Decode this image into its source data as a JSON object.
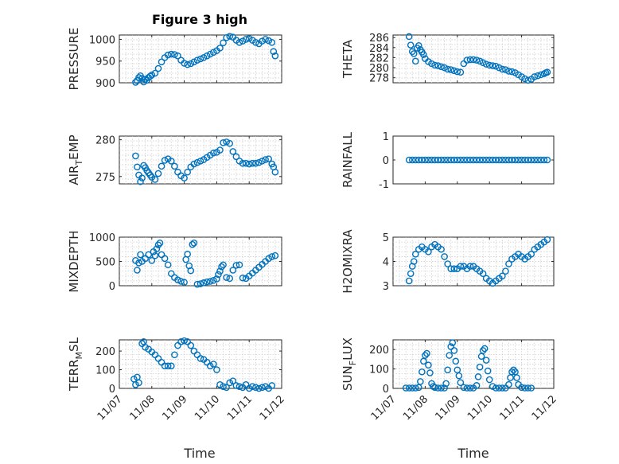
{
  "figure": {
    "title": "Figure 3 high"
  },
  "colors": {
    "marker": "#0072BD",
    "axis": "#262626",
    "grid": "#c8c8c8"
  },
  "chart_data": [
    {
      "type": "scatter",
      "ylabel": "PRESSURE",
      "ylim": [
        900,
        1010
      ],
      "yticks": [
        900,
        950,
        1000
      ],
      "ytick_labels": [
        "900",
        "950",
        "1000"
      ],
      "grid": true,
      "title": "Figure 3 high",
      "x": [
        0.5,
        0.55,
        0.6,
        0.65,
        0.7,
        0.75,
        0.8,
        0.85,
        0.9,
        0.95,
        1.0,
        1.1,
        1.2,
        1.3,
        1.4,
        1.5,
        1.6,
        1.7,
        1.8,
        1.9,
        2.0,
        2.1,
        2.2,
        2.3,
        2.4,
        2.5,
        2.6,
        2.7,
        2.8,
        2.9,
        3.0,
        3.1,
        3.2,
        3.3,
        3.4,
        3.5,
        3.6,
        3.7,
        3.8,
        3.9,
        4.0,
        4.1,
        4.2,
        4.3,
        4.4,
        4.5,
        4.6,
        4.7,
        4.75,
        4.8
      ],
      "values": [
        901,
        905,
        912,
        916,
        910,
        902,
        908,
        906,
        912,
        915,
        918,
        922,
        933,
        948,
        958,
        964,
        966,
        965,
        962,
        952,
        945,
        942,
        944,
        948,
        952,
        955,
        958,
        962,
        966,
        970,
        974,
        980,
        992,
        1004,
        1007,
        1005,
        998,
        993,
        996,
        1000,
        1002,
        998,
        993,
        990,
        996,
        1000,
        997,
        993,
        972,
        962
      ]
    },
    {
      "type": "scatter",
      "ylabel": "THETA",
      "ylim": [
        277,
        286.5
      ],
      "yticks": [
        278,
        280,
        282,
        284,
        286
      ],
      "ytick_labels": [
        "278",
        "280",
        "282",
        "284",
        "286"
      ],
      "grid": true,
      "x": [
        0.5,
        0.55,
        0.6,
        0.65,
        0.7,
        0.75,
        0.8,
        0.85,
        0.9,
        0.95,
        1.0,
        1.1,
        1.2,
        1.3,
        1.4,
        1.5,
        1.6,
        1.7,
        1.8,
        1.9,
        2.0,
        2.1,
        2.2,
        2.3,
        2.4,
        2.5,
        2.6,
        2.7,
        2.8,
        2.9,
        3.0,
        3.1,
        3.2,
        3.3,
        3.4,
        3.5,
        3.6,
        3.7,
        3.8,
        3.9,
        4.0,
        4.1,
        4.2,
        4.3,
        4.4,
        4.5,
        4.6,
        4.7,
        4.75,
        4.8
      ],
      "values": [
        286.2,
        284.5,
        283.2,
        282.8,
        281.3,
        283.9,
        284.4,
        283.6,
        283.1,
        282.6,
        281.8,
        281.2,
        280.8,
        280.5,
        280.4,
        280.2,
        280.0,
        279.7,
        279.6,
        279.4,
        279.2,
        279.1,
        280.8,
        281.5,
        281.6,
        281.6,
        281.5,
        281.3,
        281.0,
        280.7,
        280.5,
        280.4,
        280.3,
        280.0,
        279.7,
        279.6,
        279.3,
        279.2,
        279.0,
        278.6,
        278.2,
        277.8,
        277.5,
        277.7,
        278.2,
        278.4,
        278.6,
        278.8,
        279.0,
        279.1
      ]
    },
    {
      "type": "scatter",
      "ylabel": "AIR_TEMP",
      "ylim": [
        274,
        280.5
      ],
      "yticks": [
        275,
        280
      ],
      "ytick_labels": [
        "275",
        "280"
      ],
      "grid": true,
      "x": [
        0.5,
        0.55,
        0.6,
        0.65,
        0.7,
        0.75,
        0.8,
        0.85,
        0.9,
        0.95,
        1.0,
        1.1,
        1.2,
        1.3,
        1.4,
        1.5,
        1.6,
        1.7,
        1.8,
        1.9,
        2.0,
        2.1,
        2.2,
        2.3,
        2.4,
        2.5,
        2.6,
        2.7,
        2.8,
        2.9,
        3.0,
        3.1,
        3.2,
        3.3,
        3.4,
        3.5,
        3.6,
        3.7,
        3.8,
        3.9,
        4.0,
        4.1,
        4.2,
        4.3,
        4.4,
        4.5,
        4.6,
        4.7,
        4.75,
        4.8
      ],
      "values": [
        277.8,
        276.3,
        275.2,
        274.3,
        274.8,
        276.5,
        276.2,
        275.8,
        275.5,
        275.2,
        274.9,
        274.6,
        275.4,
        276.4,
        277.2,
        277.4,
        277.1,
        276.4,
        275.6,
        275.1,
        274.8,
        275.6,
        276.3,
        276.7,
        276.9,
        277.1,
        277.3,
        277.6,
        277.9,
        278.2,
        278.3,
        278.6,
        279.6,
        279.7,
        279.5,
        278.4,
        277.7,
        277.1,
        276.8,
        276.8,
        276.7,
        276.8,
        276.8,
        276.9,
        277.1,
        277.3,
        277.4,
        276.7,
        276.3,
        275.6
      ]
    },
    {
      "type": "scatter",
      "ylabel": "RAINFALL",
      "ylim": [
        -1,
        1
      ],
      "yticks": [
        -1,
        0,
        1
      ],
      "ytick_labels": [
        "-1",
        "0",
        "1"
      ],
      "grid": false,
      "x": [
        0.5,
        0.6,
        0.7,
        0.8,
        0.9,
        1.0,
        1.1,
        1.2,
        1.3,
        1.4,
        1.5,
        1.6,
        1.7,
        1.8,
        1.9,
        2.0,
        2.1,
        2.2,
        2.3,
        2.4,
        2.5,
        2.6,
        2.7,
        2.8,
        2.9,
        3.0,
        3.1,
        3.2,
        3.3,
        3.4,
        3.5,
        3.6,
        3.7,
        3.8,
        3.9,
        4.0,
        4.1,
        4.2,
        4.3,
        4.4,
        4.5,
        4.6,
        4.7,
        4.8
      ],
      "values": [
        0,
        0,
        0,
        0,
        0,
        0,
        0,
        0,
        0,
        0,
        0,
        0,
        0,
        0,
        0,
        0,
        0,
        0,
        0,
        0,
        0,
        0,
        0,
        0,
        0,
        0,
        0,
        0,
        0,
        0,
        0,
        0,
        0,
        0,
        0,
        0,
        0,
        0,
        0,
        0,
        0,
        0,
        0,
        0
      ]
    },
    {
      "type": "scatter",
      "ylabel": "MIXDEPTH",
      "ylim": [
        0,
        1000
      ],
      "yticks": [
        0,
        500,
        1000
      ],
      "ytick_labels": [
        "0",
        "500",
        "1000"
      ],
      "grid": true,
      "x": [
        0.5,
        0.55,
        0.6,
        0.65,
        0.7,
        0.8,
        0.9,
        1.0,
        1.05,
        1.1,
        1.15,
        1.2,
        1.25,
        1.3,
        1.4,
        1.5,
        1.6,
        1.7,
        1.8,
        1.9,
        2.0,
        2.05,
        2.1,
        2.15,
        2.2,
        2.25,
        2.3,
        2.4,
        2.5,
        2.6,
        2.7,
        2.8,
        2.9,
        3.0,
        3.05,
        3.1,
        3.15,
        3.2,
        3.3,
        3.4,
        3.5,
        3.6,
        3.7,
        3.8,
        3.9,
        4.0,
        4.1,
        4.2,
        4.3,
        4.4,
        4.5,
        4.6,
        4.7,
        4.8
      ],
      "values": [
        520,
        320,
        470,
        640,
        500,
        560,
        640,
        520,
        700,
        620,
        760,
        840,
        880,
        640,
        560,
        430,
        250,
        170,
        120,
        90,
        70,
        540,
        650,
        410,
        310,
        850,
        880,
        30,
        40,
        60,
        80,
        90,
        110,
        140,
        230,
        300,
        390,
        430,
        170,
        150,
        320,
        420,
        430,
        160,
        150,
        200,
        260,
        320,
        380,
        440,
        500,
        560,
        600,
        620
      ]
    },
    {
      "type": "scatter",
      "ylabel": "H2OMIXRA",
      "ylim": [
        3,
        5
      ],
      "yticks": [
        3,
        4,
        5
      ],
      "ytick_labels": [
        "3",
        "4",
        "5"
      ],
      "grid": true,
      "x": [
        0.5,
        0.55,
        0.6,
        0.65,
        0.7,
        0.8,
        0.9,
        1.0,
        1.1,
        1.2,
        1.3,
        1.4,
        1.5,
        1.6,
        1.7,
        1.8,
        1.9,
        2.0,
        2.1,
        2.2,
        2.3,
        2.4,
        2.5,
        2.6,
        2.7,
        2.8,
        2.9,
        3.0,
        3.1,
        3.2,
        3.3,
        3.4,
        3.5,
        3.6,
        3.7,
        3.8,
        3.9,
        4.0,
        4.1,
        4.2,
        4.3,
        4.4,
        4.5,
        4.6,
        4.7,
        4.8
      ],
      "values": [
        3.2,
        3.5,
        3.8,
        4.0,
        4.3,
        4.5,
        4.6,
        4.5,
        4.4,
        4.6,
        4.7,
        4.6,
        4.5,
        4.2,
        3.9,
        3.7,
        3.7,
        3.7,
        3.8,
        3.8,
        3.7,
        3.8,
        3.8,
        3.7,
        3.6,
        3.5,
        3.3,
        3.2,
        3.1,
        3.2,
        3.3,
        3.4,
        3.6,
        3.9,
        4.1,
        4.2,
        4.3,
        4.2,
        4.1,
        4.2,
        4.3,
        4.5,
        4.6,
        4.7,
        4.8,
        4.9
      ]
    },
    {
      "type": "scatter",
      "ylabel": "TERR_MSL",
      "ylim": [
        0,
        260
      ],
      "yticks": [
        0,
        100,
        200
      ],
      "ytick_labels": [
        "0",
        "100",
        "200"
      ],
      "grid": true,
      "x": [
        0.45,
        0.5,
        0.55,
        0.6,
        0.7,
        0.75,
        0.8,
        0.9,
        1.0,
        1.1,
        1.2,
        1.3,
        1.4,
        1.5,
        1.6,
        1.7,
        1.8,
        1.9,
        2.0,
        2.1,
        2.2,
        2.3,
        2.4,
        2.5,
        2.6,
        2.7,
        2.8,
        2.9,
        3.0,
        3.1,
        3.2,
        3.3,
        3.4,
        3.5,
        3.6,
        3.7,
        3.8,
        3.9,
        4.0,
        4.1,
        4.2,
        4.3,
        4.4,
        4.5,
        4.6,
        4.7
      ],
      "values": [
        50,
        20,
        60,
        30,
        240,
        250,
        220,
        210,
        195,
        180,
        160,
        140,
        120,
        120,
        120,
        180,
        230,
        250,
        255,
        250,
        230,
        200,
        180,
        160,
        155,
        140,
        120,
        130,
        100,
        20,
        10,
        5,
        30,
        40,
        15,
        10,
        5,
        20,
        0,
        10,
        5,
        0,
        5,
        10,
        0,
        15
      ]
    },
    {
      "type": "scatter",
      "ylabel": "SUN_FLUX",
      "ylim": [
        0,
        250
      ],
      "yticks": [
        0,
        100,
        200
      ],
      "ytick_labels": [
        "0",
        "100",
        "200"
      ],
      "grid": true,
      "x": [
        0.4,
        0.5,
        0.6,
        0.7,
        0.8,
        0.85,
        0.9,
        0.95,
        1.0,
        1.05,
        1.1,
        1.15,
        1.2,
        1.25,
        1.3,
        1.4,
        1.5,
        1.6,
        1.65,
        1.7,
        1.75,
        1.8,
        1.85,
        1.9,
        1.95,
        2.0,
        2.05,
        2.1,
        2.2,
        2.3,
        2.4,
        2.5,
        2.6,
        2.65,
        2.7,
        2.75,
        2.8,
        2.85,
        2.9,
        2.95,
        3.0,
        3.1,
        3.2,
        3.3,
        3.4,
        3.5,
        3.6,
        3.65,
        3.7,
        3.75,
        3.8,
        3.85,
        3.9,
        4.0,
        4.1,
        4.2,
        4.3
      ],
      "values": [
        2,
        2,
        2,
        2,
        5,
        35,
        85,
        140,
        170,
        180,
        120,
        80,
        25,
        10,
        5,
        2,
        2,
        2,
        25,
        95,
        170,
        215,
        235,
        195,
        140,
        95,
        65,
        30,
        5,
        2,
        2,
        2,
        15,
        60,
        110,
        165,
        195,
        205,
        145,
        90,
        45,
        10,
        2,
        2,
        2,
        2,
        20,
        55,
        85,
        95,
        85,
        55,
        20,
        5,
        2,
        2,
        2
      ]
    }
  ],
  "axes_text": {
    "ylabels": [
      {
        "main": "PRESSURE",
        "sub": "",
        "rest": ""
      },
      {
        "main": "THETA",
        "sub": "",
        "rest": ""
      },
      {
        "main": "AIR",
        "sub": "T",
        "rest": "EMP"
      },
      {
        "main": "RAINFALL",
        "sub": "",
        "rest": ""
      },
      {
        "main": "MIXDEPTH",
        "sub": "",
        "rest": ""
      },
      {
        "main": "H2OMIXRA",
        "sub": "",
        "rest": ""
      },
      {
        "main": "TERR",
        "sub": "M",
        "rest": "SL"
      },
      {
        "main": "SUN",
        "sub": "F",
        "rest": "LUX"
      }
    ],
    "xtick_labels": [
      "11/07",
      "11/08",
      "11/09",
      "11/10",
      "11/11",
      "11/12"
    ],
    "xlabel": "Time"
  }
}
